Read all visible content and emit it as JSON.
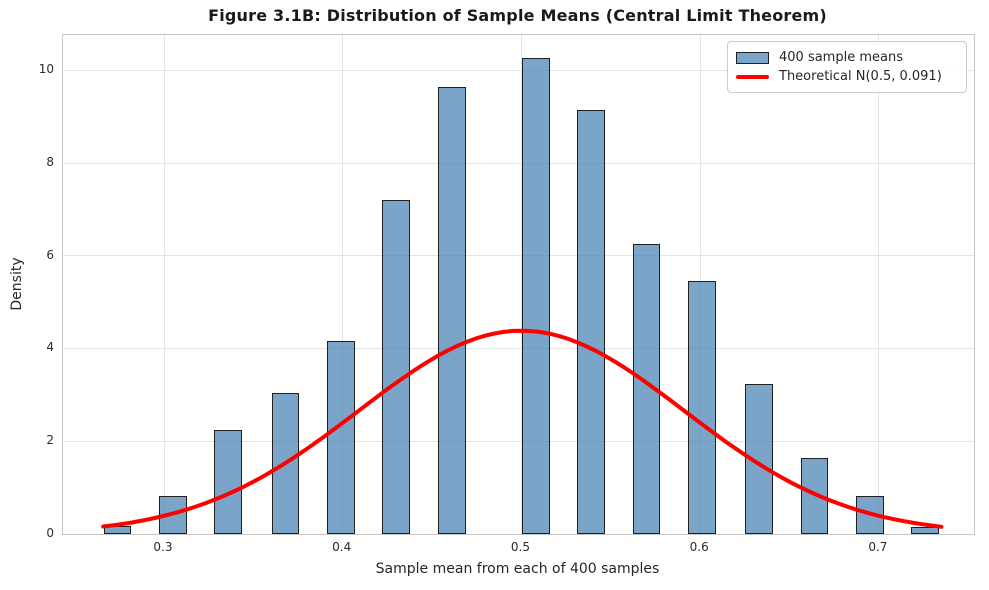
{
  "figure": {
    "title": "Figure 3.1B: Distribution of Sample Means (Central Limit Theorem)",
    "xlabel": "Sample mean from each of 400 samples",
    "ylabel": "Density"
  },
  "legend": {
    "items": [
      {
        "type": "patch",
        "label": "400 sample means",
        "fill": "rgba(70,130,180,0.72)",
        "edge": "#1f1f1f"
      },
      {
        "type": "line",
        "label": "Theoretical N(0.5, 0.091)",
        "color": "#ff0000"
      }
    ]
  },
  "chart_data": {
    "type": "bar",
    "subtype": "histogram-with-theoretical-curve",
    "title": "Figure 3.1B: Distribution of Sample Means (Central Limit Theorem)",
    "xlabel": "Sample mean from each of 400 samples",
    "ylabel": "Density",
    "xlim": [
      0.2435,
      0.7532
    ],
    "ylim": [
      0,
      10.76
    ],
    "grid": true,
    "legend_position": "upper right",
    "xticks": {
      "values": [
        0.3,
        0.4,
        0.5,
        0.6,
        0.7
      ],
      "labels": [
        "0.3",
        "0.4",
        "0.5",
        "0.6",
        "0.7"
      ]
    },
    "yticks": {
      "values": [
        0,
        2,
        4,
        6,
        8,
        10
      ],
      "labels": [
        "0",
        "2",
        "4",
        "6",
        "8",
        "10"
      ]
    },
    "bars": {
      "name": "400 sample means",
      "centers": [
        0.274,
        0.305,
        0.336,
        0.368,
        0.399,
        0.43,
        0.461,
        0.508,
        0.539,
        0.57,
        0.601,
        0.633,
        0.664,
        0.695,
        0.726
      ],
      "densities": [
        0.18,
        0.81,
        2.25,
        3.04,
        4.17,
        7.2,
        9.63,
        10.27,
        9.14,
        6.25,
        5.46,
        3.24,
        1.64,
        0.81,
        0.16
      ],
      "bar_width": 0.0156,
      "fill": "rgba(70,130,180,0.72)",
      "edge": "#1f1f1f"
    },
    "curve": {
      "name": "Theoretical N(0.5, 0.091)",
      "distribution": "normal",
      "mu": 0.5,
      "sigma": 0.091,
      "peak_density": 4.3846,
      "x_start": 0.266,
      "x_end": 0.735,
      "color": "#ff0000",
      "linewidth": 4
    },
    "colors": {
      "bar_fill_on_white": "#7da7ca",
      "curve": "#ff0000",
      "grid": "#e4e4e4",
      "spine": "#c6c6c6",
      "text": "#262626"
    }
  }
}
